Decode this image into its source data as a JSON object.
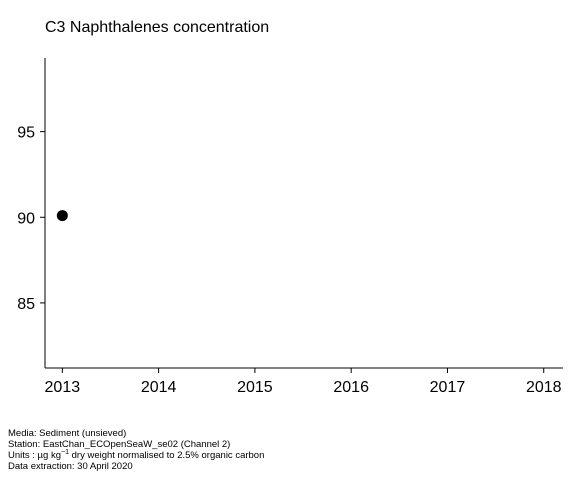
{
  "chart_data": {
    "type": "scatter",
    "title": "C3 Naphthalenes concentration",
    "xlabel": "",
    "ylabel": "",
    "x_ticks": [
      "2013",
      "2014",
      "2015",
      "2016",
      "2017",
      "2018"
    ],
    "y_ticks": [
      85,
      90,
      95
    ],
    "xlim": [
      2012.82,
      2018.2
    ],
    "ylim": [
      81.2,
      99.3
    ],
    "grid": false,
    "points": [
      {
        "x": 2013,
        "y": 90.1
      }
    ],
    "marker_color": "#000000"
  },
  "footer": {
    "media": "Media: Sediment (unsieved)",
    "station": "Station: EastChan_ECOpenSeaW_se02 (Channel 2)",
    "units_prefix": "Units : µg kg",
    "units_sup": "−1",
    "units_suffix": " dry weight normalised to 2.5% organic carbon",
    "extraction": "Data extraction: 30 April 2020"
  }
}
